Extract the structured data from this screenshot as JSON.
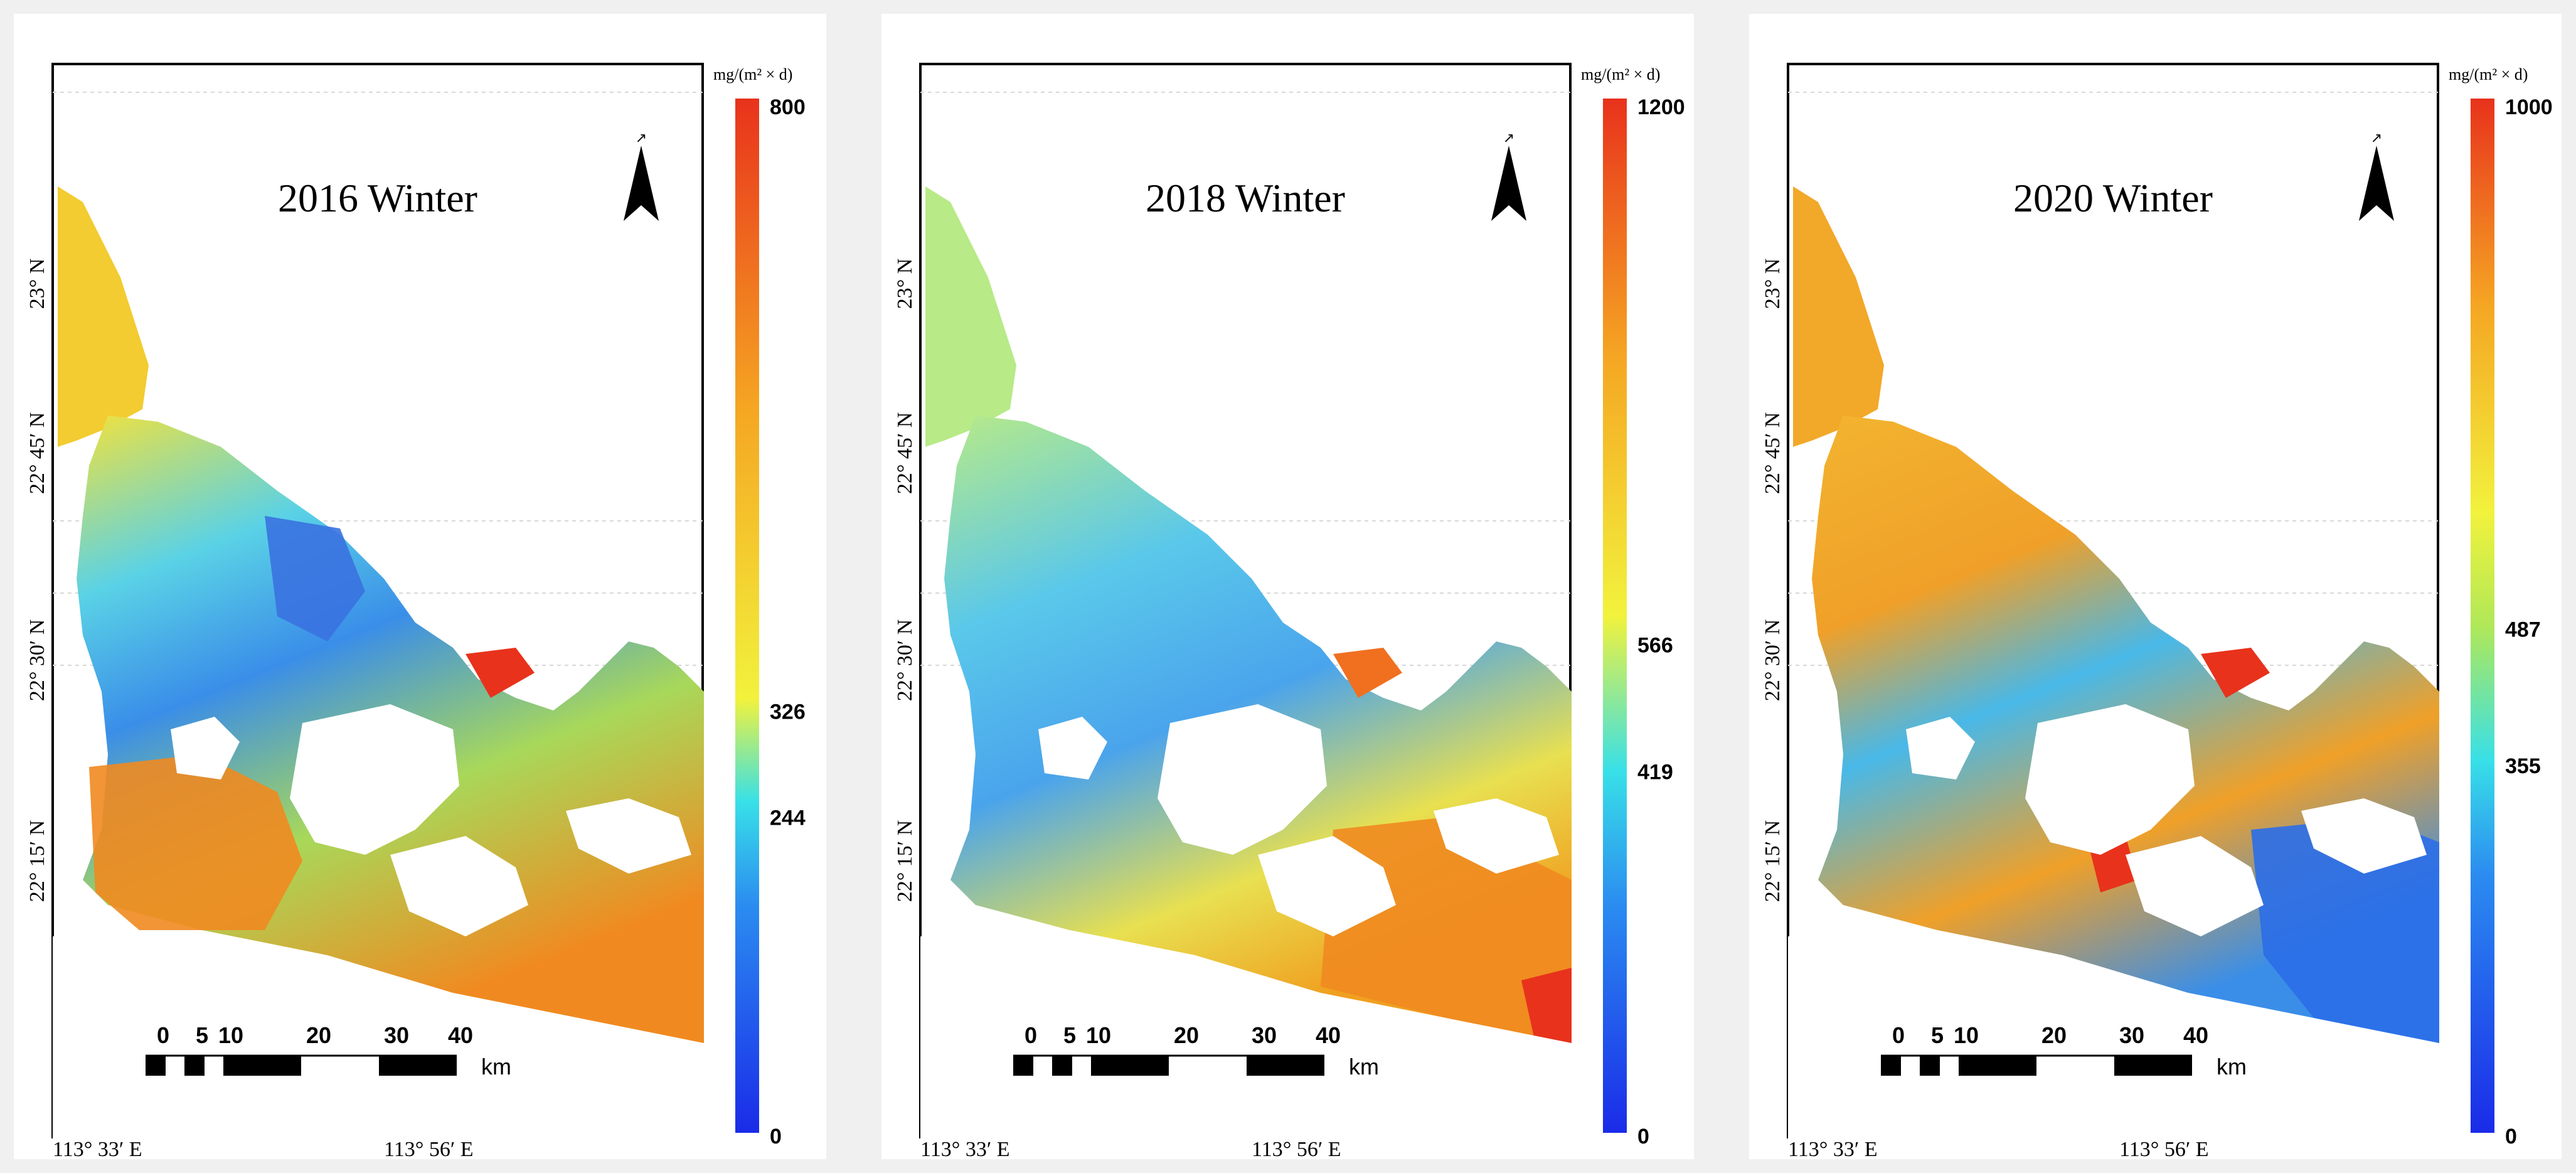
{
  "figure": {
    "colors": {
      "ramp": [
        "#1a2be8",
        "#2b8cf0",
        "#38e0e8",
        "#f2f23c",
        "#f5a623",
        "#e8321c"
      ],
      "land": "#ffffff",
      "background": "#f0f0f0"
    },
    "shared": {
      "unit_label": "mg/(m² × d)",
      "north_symbol": "↗",
      "scale_ticks": [
        "0",
        "5",
        "10",
        "20",
        "30",
        "40"
      ],
      "scale_unit": "km",
      "lon_labels": [
        "113° 33′ E",
        "113° 56′ E"
      ],
      "lat_labels": [
        "23° N",
        "22° 45′ N",
        "22° 30′ N",
        "22° 15′ N"
      ]
    },
    "panels": [
      {
        "id": "2016",
        "title": "2016 Winter",
        "legend_max": "800",
        "legend_min": "0",
        "legend_ticks": [
          {
            "label": "326",
            "value": 326
          },
          {
            "label": "244",
            "value": 244
          }
        ],
        "legend_range": [
          0,
          800
        ]
      },
      {
        "id": "2018",
        "title": "2018 Winter",
        "legend_max": "1200",
        "legend_min": "0",
        "legend_ticks": [
          {
            "label": "566",
            "value": 566
          },
          {
            "label": "419",
            "value": 419
          }
        ],
        "legend_range": [
          0,
          1200
        ]
      },
      {
        "id": "2020",
        "title": "2020 Winter",
        "legend_max": "1000",
        "legend_min": "0",
        "legend_ticks": [
          {
            "label": "487",
            "value": 487
          },
          {
            "label": "355",
            "value": 355
          }
        ],
        "legend_range": [
          0,
          1000
        ]
      }
    ]
  }
}
